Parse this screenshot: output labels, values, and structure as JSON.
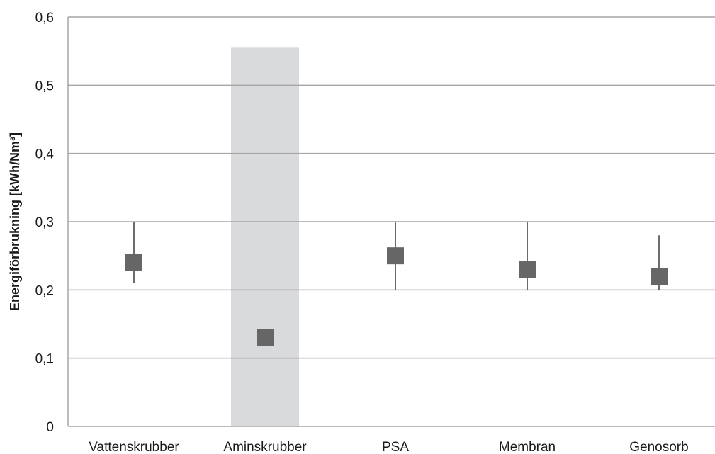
{
  "chart_data": {
    "type": "scatter",
    "title": "",
    "xlabel": "",
    "ylabel": "Energiförbrukning [kWh/Nm³]",
    "ylim": [
      0,
      0.6
    ],
    "yticks": [
      0,
      0.1,
      0.2,
      0.3,
      0.4,
      0.5,
      0.6
    ],
    "ytick_labels": [
      "0",
      "0,1",
      "0,2",
      "0,3",
      "0,4",
      "0,5",
      "0,6"
    ],
    "grid": "horizontal",
    "categories": [
      "Vattenskrubber",
      "Aminskrubber",
      "PSA",
      "Membran",
      "Genosorb"
    ],
    "values": [
      0.24,
      0.13,
      0.25,
      0.23,
      0.22
    ],
    "range_low": [
      0.21,
      null,
      0.2,
      0.2,
      0.2
    ],
    "range_high": [
      0.3,
      null,
      0.3,
      0.3,
      0.28
    ],
    "shaded_band": {
      "category": "Aminskrubber",
      "low": 0,
      "high": 0.555
    },
    "colors": {
      "marker": "#666666",
      "band": "#d9dadc",
      "grid": "#a6a6a6",
      "whisker": "#3a3a3a"
    }
  }
}
